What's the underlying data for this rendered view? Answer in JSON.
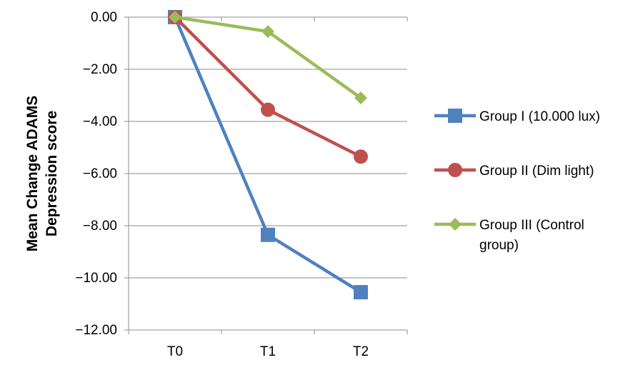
{
  "chart_data": {
    "type": "line",
    "title": "",
    "xlabel": "",
    "ylabel": "Mean Change ADAMS Depression score",
    "ylabel_lines": [
      "Mean Change ADAMS",
      "Depression score"
    ],
    "categories": [
      "T0",
      "T1",
      "T2"
    ],
    "ylim": [
      -12,
      0
    ],
    "ytick_step": 2,
    "y_tick_labels": [
      "0.00",
      "−2.00",
      "−4.00",
      "−6.00",
      "−8.00",
      "−10.00",
      "−12.00"
    ],
    "grid": true,
    "legend_position": "right",
    "series": [
      {
        "name": "Group I (10.000 lux)",
        "legend_lines": [
          "Group I (10.000 lux)"
        ],
        "color": "#4F81BD",
        "marker": "square",
        "values": [
          0.0,
          -8.35,
          -10.55
        ]
      },
      {
        "name": "Group II (Dim light)",
        "legend_lines": [
          "Group II (Dim light)"
        ],
        "color": "#C0504D",
        "marker": "circle",
        "values": [
          0.0,
          -3.55,
          -5.35
        ]
      },
      {
        "name": "Group III (Control group)",
        "legend_lines": [
          "Group III (Control",
          "group)"
        ],
        "color": "#9BBB59",
        "marker": "diamond",
        "values": [
          0.0,
          -0.55,
          -3.1
        ]
      }
    ]
  }
}
